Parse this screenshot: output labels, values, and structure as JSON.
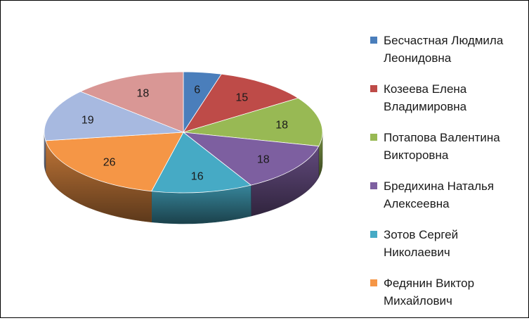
{
  "chart_data": {
    "type": "pie",
    "style": "3d",
    "legend_position": "right",
    "start": "top",
    "direction": "clockwise",
    "slices": [
      {
        "label": "Бесчастная Людмила Леонидовна",
        "value": 6,
        "color": "#4a7ebb"
      },
      {
        "label": "Козеева Елена Владимировна",
        "value": 15,
        "color": "#be4b48"
      },
      {
        "label": "Потапова Валентина Викторовна",
        "value": 18,
        "color": "#98b954"
      },
      {
        "label": "Бредихина Наталья Алексеевна",
        "value": 18,
        "color": "#7d5fa0"
      },
      {
        "label": "Зотов Сергей Николаевич",
        "value": 16,
        "color": "#46aac5"
      },
      {
        "label": "Федянин Виктор Михайлович",
        "value": 26,
        "color": "#f59646"
      },
      {
        "label": "",
        "value": 19,
        "color": "#a7b9e0"
      },
      {
        "label": "",
        "value": 18,
        "color": "#d99795"
      }
    ],
    "legend_entries": [
      {
        "label": "Бесчастная Людмила",
        "label_line2": "Леонидовна",
        "color": "#4a7ebb"
      },
      {
        "label": "Козеева Елена",
        "label_line2": "Владимировна",
        "color": "#be4b48"
      },
      {
        "label": "Потапова Валентина",
        "label_line2": "Викторовна",
        "color": "#98b954"
      },
      {
        "label": "Бредихина Наталья",
        "label_line2": "Алексеевна",
        "color": "#7d5fa0"
      },
      {
        "label": "Зотов Сергей",
        "label_line2": "Николаевич",
        "color": "#46aac5"
      },
      {
        "label": "Федянин Виктор",
        "label_line2": "Михайлович",
        "color": "#f59646"
      }
    ]
  }
}
